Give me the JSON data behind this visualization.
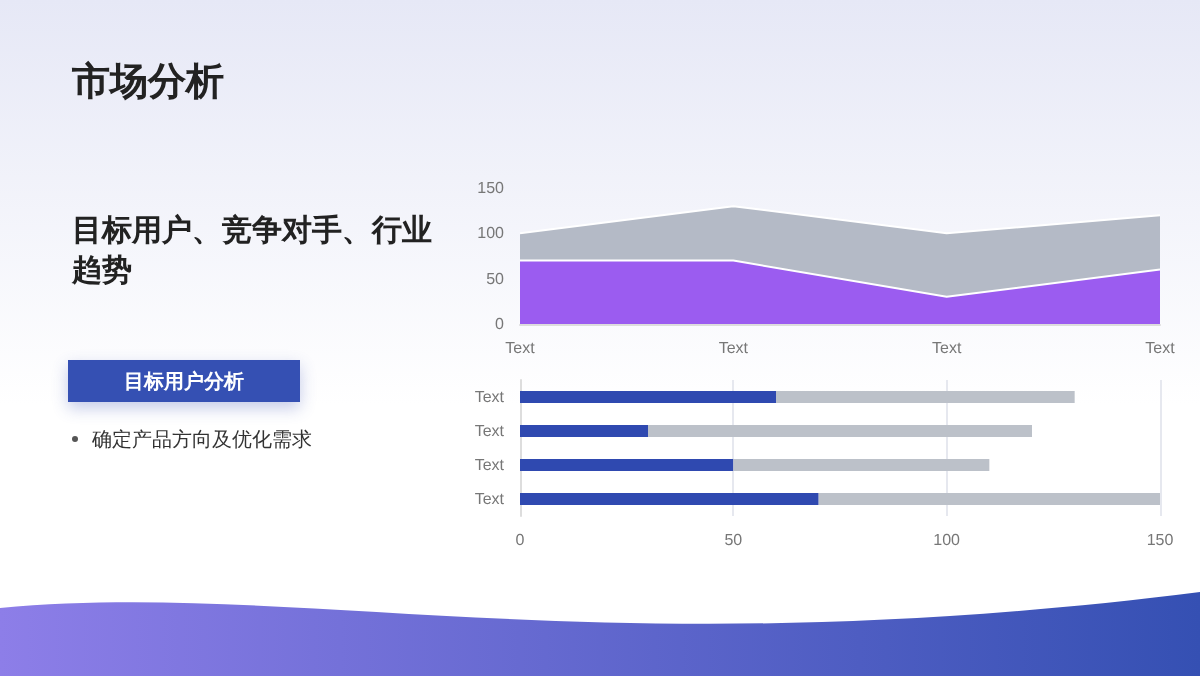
{
  "chart_data": [
    {
      "type": "other",
      "title": "市场分析",
      "subtitle": "目标用户、竞争对手、行业趋势",
      "annotations": [
        "目标用户分析",
        "确定产品方向及优化需求"
      ]
    },
    {
      "type": "area",
      "stacked": true,
      "categories": [
        "Text",
        "Text",
        "Text",
        "Text"
      ],
      "series": [
        {
          "color": "#9b5cf0",
          "values": [
            70,
            70,
            30,
            60
          ]
        },
        {
          "color": "#b4bac6",
          "values": [
            30,
            60,
            70,
            60
          ]
        }
      ],
      "ylim": [
        0,
        150
      ],
      "yticks": [
        0,
        50,
        100,
        150
      ]
    },
    {
      "type": "bar",
      "stacked": true,
      "orientation": "horizontal",
      "categories": [
        "Text",
        "Text",
        "Text",
        "Text"
      ],
      "series": [
        {
          "color": "#2f49b0",
          "values": [
            60,
            30,
            50,
            70
          ]
        },
        {
          "color": "#bcc1c9",
          "values": [
            70,
            90,
            60,
            80
          ]
        }
      ],
      "xlim": [
        0,
        150
      ],
      "xticks": [
        0,
        50,
        100,
        150
      ],
      "grid": "x"
    }
  ]
}
